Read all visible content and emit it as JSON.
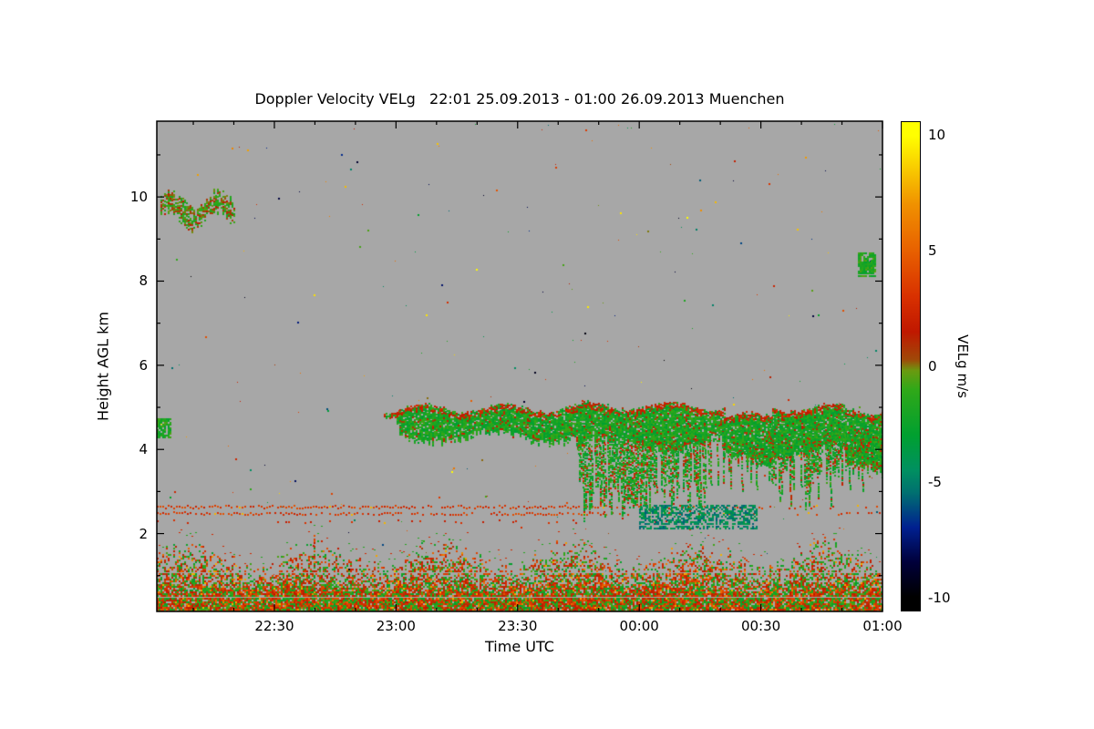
{
  "page": {
    "background": "#ffffff"
  },
  "chart_data": {
    "type": "heatmap",
    "title": "Doppler Velocity VELg   22:01 25.09.2013 - 01:00 26.09.2013 Muenchen",
    "xlabel": "Time UTC",
    "ylabel": "Height AGL km",
    "x_start_label": "22:01",
    "x_end_label": "01:00",
    "x_range_minutes": [
      0,
      179
    ],
    "y_range_km": [
      0.15,
      11.8
    ],
    "no_data_color": "#a7a7a7",
    "x_ticks": [
      {
        "label": "22:30",
        "t": 29
      },
      {
        "label": "23:00",
        "t": 59
      },
      {
        "label": "23:30",
        "t": 89
      },
      {
        "label": "00:00",
        "t": 119
      },
      {
        "label": "00:30",
        "t": 149
      },
      {
        "label": "01:00",
        "t": 179
      }
    ],
    "x_minor_step_minutes": 10,
    "y_ticks": [
      {
        "label": "2",
        "h": 2
      },
      {
        "label": "4",
        "h": 4
      },
      {
        "label": "6",
        "h": 6
      },
      {
        "label": "8",
        "h": 8
      },
      {
        "label": "10",
        "h": 10
      }
    ],
    "colorbar": {
      "label": "VELg m/s",
      "range": [
        -10,
        10
      ],
      "display_range": [
        -10.6,
        10.6
      ],
      "ticks": [
        {
          "label": "10",
          "v": 10
        },
        {
          "label": "5",
          "v": 5
        },
        {
          "label": "0",
          "v": 0
        },
        {
          "label": "-5",
          "v": -5
        },
        {
          "label": "-10",
          "v": -10
        }
      ],
      "stops": [
        {
          "v": -10,
          "c": "#000000"
        },
        {
          "v": -8.5,
          "c": "#00003a"
        },
        {
          "v": -7,
          "c": "#002090"
        },
        {
          "v": -5.5,
          "c": "#007070"
        },
        {
          "v": -4.5,
          "c": "#009060"
        },
        {
          "v": -3,
          "c": "#00a030"
        },
        {
          "v": -1,
          "c": "#30a818"
        },
        {
          "v": -0.2,
          "c": "#6a9a10"
        },
        {
          "v": 0.3,
          "c": "#a04808"
        },
        {
          "v": 1.5,
          "c": "#c01800"
        },
        {
          "v": 3,
          "c": "#d83000"
        },
        {
          "v": 5,
          "c": "#e86000"
        },
        {
          "v": 7,
          "c": "#f09000"
        },
        {
          "v": 8.5,
          "c": "#f8c800"
        },
        {
          "v": 10,
          "c": "#ffff00"
        }
      ]
    },
    "features": [
      {
        "name": "random-noise-specks",
        "type": "noise",
        "count": 260,
        "v": [
          -10,
          10
        ],
        "seed": 91
      },
      {
        "name": "surface-boundary-layer",
        "type": "speckle-band",
        "t": [
          0,
          179
        ],
        "h": [
          0.17,
          1.9
        ],
        "base_h": 0.55,
        "velocity_mix": {
          "updraft_orange": [
            0.5,
            4.5
          ],
          "downdraft_green": [
            -3,
            -0.3
          ]
        },
        "seed": 11
      },
      {
        "name": "artifact-line-upper",
        "type": "dotted-line",
        "h": 2.65,
        "t": [
          0,
          179
        ],
        "v": [
          2,
          4.5
        ],
        "density": [
          0.8,
          0.35
        ],
        "seed": 21
      },
      {
        "name": "artifact-line-lower",
        "type": "dotted-line",
        "h": 2.49,
        "t": [
          0,
          179
        ],
        "v": [
          2,
          4.5
        ],
        "density": [
          0.75,
          0.3
        ],
        "seed": 22
      },
      {
        "name": "artifact-line-faint",
        "type": "dotted-line",
        "h": 2.3,
        "t": [
          0,
          179
        ],
        "v": [
          1.5,
          3.5
        ],
        "density": [
          0.15,
          0.05
        ],
        "seed": 23
      },
      {
        "name": "mid-level-cloud",
        "type": "cloud-layer",
        "segments": [
          {
            "t": [
              56,
              60
            ],
            "top": 4.95,
            "base": 4.6
          },
          {
            "t": [
              60,
              104
            ],
            "top": 5.0,
            "base": 4.32
          },
          {
            "t": [
              104,
              140
            ],
            "top": 5.05,
            "base": 4.15
          },
          {
            "t": [
              140,
              152
            ],
            "top": 4.8,
            "base": 3.75
          },
          {
            "t": [
              152,
              170
            ],
            "top": 5.0,
            "base": 3.95
          },
          {
            "t": [
              170,
              179
            ],
            "top": 4.95,
            "base": 3.6
          }
        ],
        "interior_v": [
          -3.2,
          -0.7
        ],
        "fringe_v": [
          0.8,
          3.0
        ],
        "seed": 31
      },
      {
        "name": "virga-fall-streaks",
        "type": "fall-streaks",
        "segments": [
          {
            "t": [
              100,
              104
            ],
            "p": 0.35,
            "bottom": [
              3.6,
              4.1
            ]
          },
          {
            "t": [
              104,
              136
            ],
            "p": 0.9,
            "bottom": [
              2.3,
              3.4
            ]
          },
          {
            "t": [
              136,
              151
            ],
            "p": 0.5,
            "bottom": [
              2.9,
              3.7
            ]
          },
          {
            "t": [
              151,
              166
            ],
            "p": 0.85,
            "bottom": [
              2.6,
              3.6
            ]
          },
          {
            "t": [
              166,
              179
            ],
            "p": 0.8,
            "bottom": [
              3.0,
              3.8
            ]
          }
        ],
        "top": [
          4.2,
          4.6
        ],
        "v_green": [
          -3.4,
          -0.6
        ],
        "v_orange": [
          0.5,
          3.0
        ],
        "orange_fraction": 0.22,
        "seed": 41
      },
      {
        "name": "teal-downdraft-patch",
        "type": "speckle-rect",
        "t": [
          119,
          148
        ],
        "h": [
          2.15,
          2.72
        ],
        "v": [
          -6,
          -3.2
        ],
        "density": 0.55,
        "seed": 51
      },
      {
        "name": "high-cloud-patch",
        "type": "wavy-patch",
        "t": [
          1,
          19
        ],
        "h_center": 9.72,
        "seed": 61
      },
      {
        "name": "left-edge-cloud",
        "type": "speckle-rect",
        "t": [
          0,
          3.5
        ],
        "h": [
          4.3,
          4.78
        ],
        "v": [
          -3,
          -0.4
        ],
        "density": 0.8,
        "seed": 71
      },
      {
        "name": "right-edge-cloud",
        "type": "speckle-rect",
        "t": [
          173,
          177
        ],
        "h": [
          8.15,
          8.72
        ],
        "v": [
          -3,
          -0.4
        ],
        "density": 0.85,
        "seed": 81
      }
    ]
  }
}
